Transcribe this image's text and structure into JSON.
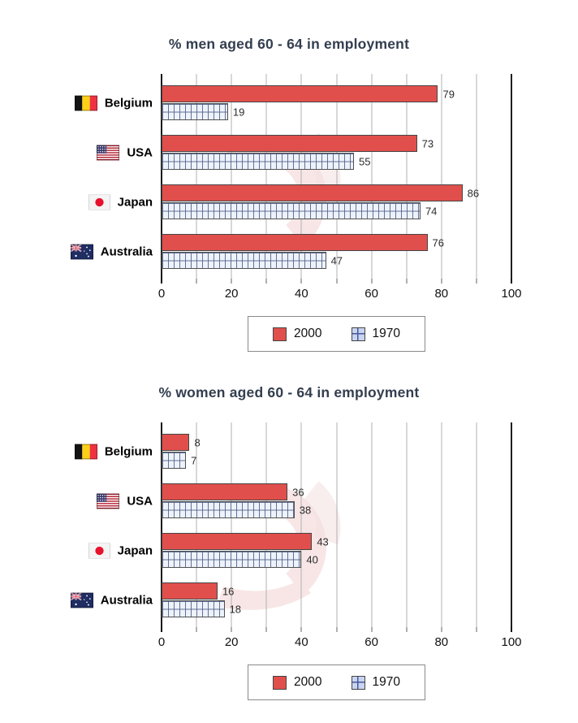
{
  "colors": {
    "bar_2000": "#E14F4C",
    "bar_border": "#454545",
    "bar_1970_bg": "#EDF2FB",
    "bar_1970_line": "#4C5C82",
    "grid_line": "#B0B0B0",
    "axis_line": "#1A1A1A",
    "title_text": "#333E4F",
    "watermark_pink": "#F2CFCF"
  },
  "decor": {
    "watermark_icon": "pink-swoosh-logo-watermark"
  },
  "chart_data": [
    {
      "type": "bar",
      "orientation": "horizontal",
      "title": "% men aged 60 - 64 in employment",
      "categories": [
        "Belgium",
        "USA",
        "Japan",
        "Australia"
      ],
      "category_icons": [
        "belgium-flag-icon",
        "usa-flag-icon",
        "japan-flag-icon",
        "australia-flag-icon"
      ],
      "series": [
        {
          "name": "2000",
          "pattern": "solid-red",
          "values": [
            79,
            73,
            86,
            76
          ]
        },
        {
          "name": "1970",
          "pattern": "checkered",
          "values": [
            19,
            55,
            74,
            47
          ]
        }
      ],
      "x_ticks": [
        0,
        20,
        40,
        60,
        80,
        100
      ],
      "xlim": [
        0,
        100
      ],
      "grid_step": 10,
      "grid": true,
      "legend_position": "bottom-center"
    },
    {
      "type": "bar",
      "orientation": "horizontal",
      "title": "% women aged 60 - 64 in employment",
      "categories": [
        "Belgium",
        "USA",
        "Japan",
        "Australia"
      ],
      "category_icons": [
        "belgium-flag-icon",
        "usa-flag-icon",
        "japan-flag-icon",
        "australia-flag-icon"
      ],
      "series": [
        {
          "name": "2000",
          "pattern": "solid-red",
          "values": [
            8,
            36,
            43,
            16
          ]
        },
        {
          "name": "1970",
          "pattern": "checkered",
          "values": [
            7,
            38,
            40,
            18
          ]
        }
      ],
      "x_ticks": [
        0,
        20,
        40,
        60,
        80,
        100
      ],
      "xlim": [
        0,
        100
      ],
      "grid_step": 10,
      "grid": true,
      "legend_position": "bottom-center"
    }
  ]
}
